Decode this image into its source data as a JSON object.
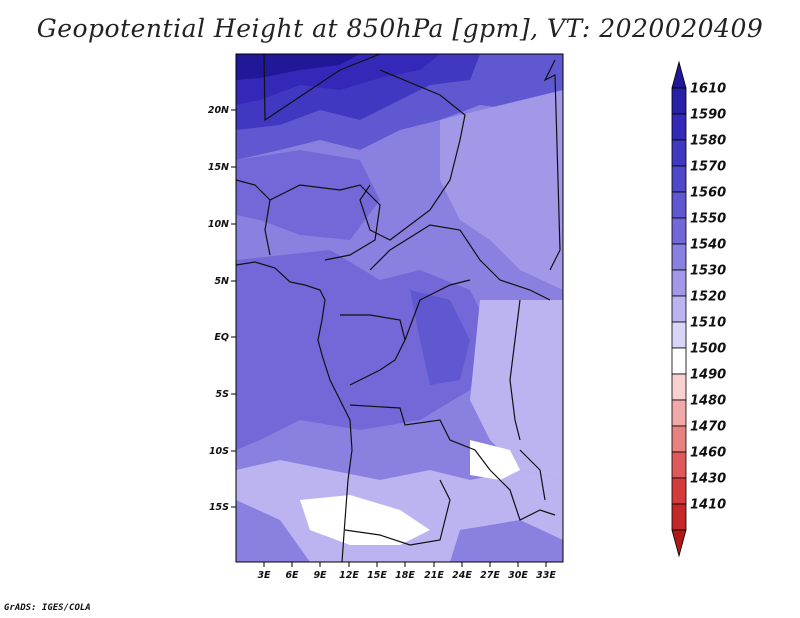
{
  "title": "Geopotential Height at 850hPa [gpm], VT: 2020020409",
  "footer": "GrADS: IGES/COLA",
  "map": {
    "lat_labels": [
      "20N",
      "15N",
      "10N",
      "5N",
      "EQ",
      "5S",
      "10S",
      "15S"
    ],
    "lon_labels": [
      "3E",
      "6E",
      "9E",
      "12E",
      "15E",
      "18E",
      "21E",
      "24E",
      "27E",
      "30E",
      "33E"
    ]
  },
  "colorbar": {
    "levels": [
      "1610",
      "1590",
      "1580",
      "1570",
      "1560",
      "1550",
      "1540",
      "1530",
      "1520",
      "1510",
      "1500",
      "1490",
      "1480",
      "1470",
      "1460",
      "1430",
      "1410"
    ],
    "colors": [
      "#201898",
      "#2a20a8",
      "#3428b8",
      "#4038c0",
      "#5048c8",
      "#6058d0",
      "#7468d8",
      "#8a80e0",
      "#a298e8",
      "#bcb4f0",
      "#d8d4f6",
      "#ffffff",
      "#f8d0d0",
      "#f0a8a8",
      "#e88080",
      "#de5a5a",
      "#d43c3c",
      "#c42828",
      "#b01818"
    ]
  }
}
